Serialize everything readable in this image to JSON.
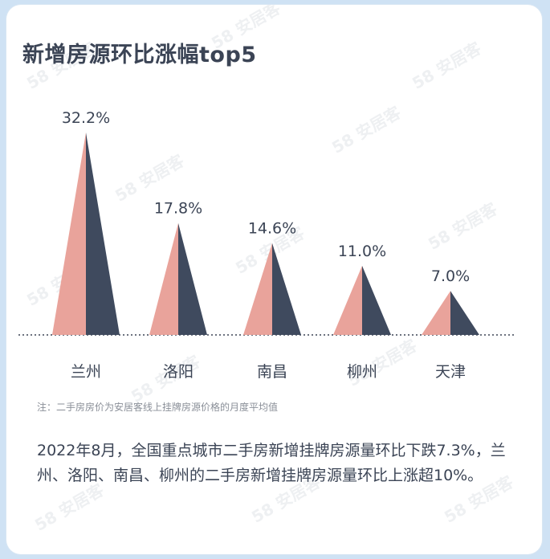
{
  "title": "新增房源环比涨幅top5",
  "note": "注：二手房房价为安居客线上挂牌房源价格的月度平均值",
  "description": "2022年8月，全国重点城市二手房新增挂牌房源量环比下跌7.3%，兰州、洛阳、南昌、柳州的二手房新增挂牌房源量环比上涨超10%。",
  "watermark": "58 安居客",
  "colors": {
    "light_face": "#e9a39b",
    "dark_face": "#3f4a5e",
    "text": "#3b4455",
    "baseline": "#3b4455"
  },
  "chart_data": {
    "type": "bar",
    "categories": [
      "兰州",
      "洛阳",
      "南昌",
      "柳州",
      "天津"
    ],
    "values": [
      32.2,
      17.8,
      14.6,
      11.0,
      7.0
    ],
    "value_labels": [
      "32.2%",
      "17.8%",
      "14.6%",
      "11.0%",
      "7.0%"
    ],
    "unit": "%",
    "title": "新增房源环比涨幅top5",
    "xlabel": "",
    "ylabel": "",
    "ylim": [
      0,
      32.2
    ],
    "grid": false,
    "mark_shape": "pyramid"
  }
}
